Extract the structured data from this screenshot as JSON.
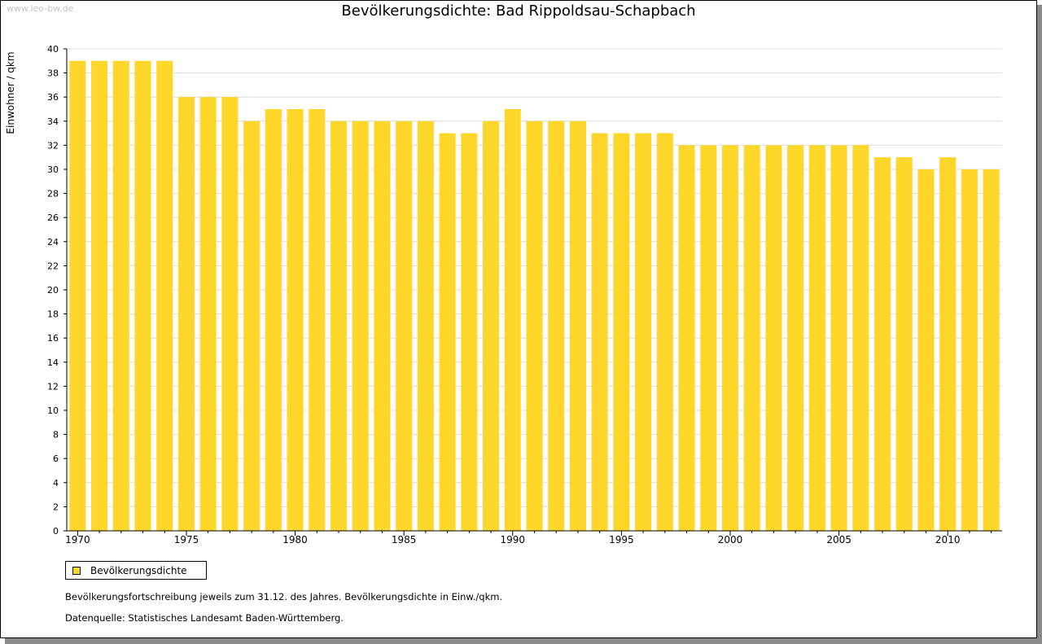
{
  "watermark": "www.leo-bw.de",
  "colors": {
    "bar": "#FFD62A",
    "grid": "#DCDCDC",
    "axis": "#000000"
  },
  "chart_data": {
    "type": "bar",
    "title": "Bevölkerungsdichte: Bad Rippoldsau-Schapbach",
    "ylabel": "Einwohner / qkm",
    "xlabel": "",
    "ylim": [
      0,
      40
    ],
    "y_ticks": [
      0,
      2,
      4,
      6,
      8,
      10,
      12,
      14,
      16,
      18,
      20,
      22,
      24,
      26,
      28,
      30,
      32,
      34,
      36,
      38,
      40
    ],
    "x_tick_labels": [
      "1970",
      "1975",
      "1980",
      "1985",
      "1990",
      "1995",
      "2000",
      "2005",
      "2010"
    ],
    "grid": true,
    "legend_position": "bottom-left",
    "categories": [
      1970,
      1971,
      1972,
      1973,
      1974,
      1975,
      1976,
      1977,
      1978,
      1979,
      1980,
      1981,
      1982,
      1983,
      1984,
      1985,
      1986,
      1987,
      1988,
      1989,
      1990,
      1991,
      1992,
      1993,
      1994,
      1995,
      1996,
      1997,
      1998,
      1999,
      2000,
      2001,
      2002,
      2003,
      2004,
      2005,
      2006,
      2007,
      2008,
      2009,
      2010,
      2011,
      2012
    ],
    "series": [
      {
        "name": "Bevölkerungsdichte",
        "values": [
          39,
          39,
          39,
          39,
          39,
          36,
          36,
          36,
          34,
          35,
          35,
          35,
          34,
          34,
          34,
          34,
          34,
          33,
          33,
          34,
          35,
          34,
          34,
          34,
          33,
          33,
          33,
          33,
          32,
          32,
          32,
          32,
          32,
          32,
          32,
          32,
          32,
          31,
          31,
          30,
          31,
          30,
          30
        ]
      }
    ]
  },
  "footnotes": {
    "line1": "Bevölkerungsfortschreibung jeweils zum 31.12. des Jahres. Bevölkerungsdichte in Einw./qkm.",
    "line2": "Datenquelle: Statistisches Landesamt Baden-Württemberg."
  }
}
